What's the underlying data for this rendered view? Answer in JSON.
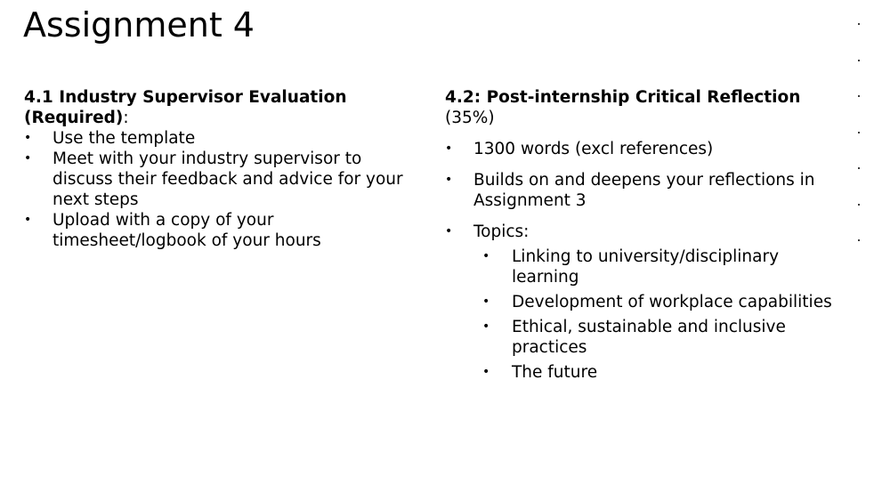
{
  "slide": {
    "title": "Assignment 4"
  },
  "left": {
    "heading_bold": "4.1 Industry Supervisor Evaluation (Required)",
    "heading_suffix": ":",
    "bullets": [
      "Use the template",
      "Meet with your industry supervisor to discuss their feedback and advice for your next steps",
      "Upload with a copy of your timesheet/logbook of your hours"
    ]
  },
  "right": {
    "heading_bold": "4.2: Post-internship Critical Reflection",
    "heading_suffix": "(35%)",
    "bullets": [
      "1300 words (excl references)",
      "Builds on and deepens your reflections in Assignment 3",
      "Topics:"
    ],
    "sub_bullets": [
      "Linking to university/disciplinary learning",
      "Development of workplace capabilities",
      "Ethical, sustainable and inclusive practices",
      "The future"
    ]
  },
  "bullet_glyph": "•"
}
